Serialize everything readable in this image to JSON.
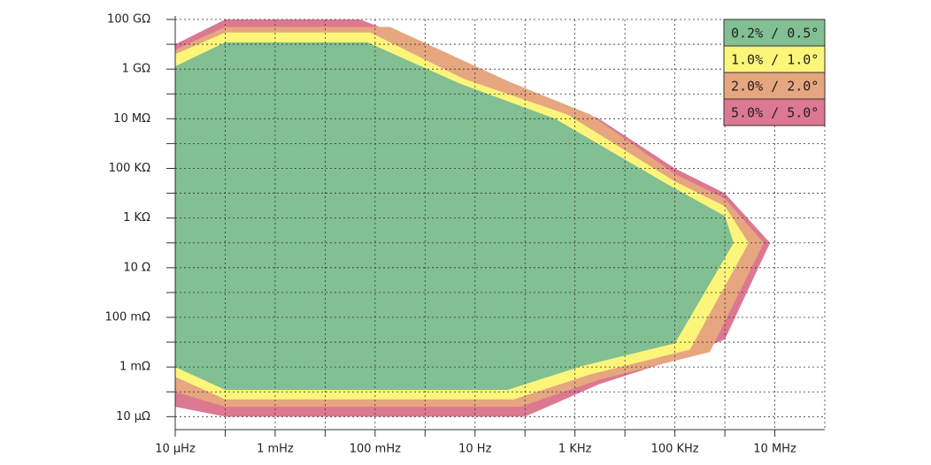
{
  "chart_data": {
    "type": "area",
    "log_x": true,
    "log_y": true,
    "grid": true,
    "legend": "top-right",
    "xlim": [
      1e-05,
      100000000.0
    ],
    "ylim": [
      3e-06,
      100000000000.0
    ],
    "xticks": [
      {
        "value": 1e-05,
        "label": "10 µHz"
      },
      {
        "value": 0.001,
        "label": "1 mHz"
      },
      {
        "value": 0.1,
        "label": "100 mHz"
      },
      {
        "value": 10,
        "label": "10 Hz"
      },
      {
        "value": 1000,
        "label": "1 KHz"
      },
      {
        "value": 100000.0,
        "label": "100 KHz"
      },
      {
        "value": 10000000.0,
        "label": "10 MHz"
      }
    ],
    "yticks": [
      {
        "value": 100000000000.0,
        "label": "100 GΩ"
      },
      {
        "value": 1000000000.0,
        "label": "1 GΩ"
      },
      {
        "value": 10000000.0,
        "label": "10 MΩ"
      },
      {
        "value": 100000.0,
        "label": "100 KΩ"
      },
      {
        "value": 1000,
        "label": "1 KΩ"
      },
      {
        "value": 10,
        "label": "10 Ω"
      },
      {
        "value": 0.1,
        "label": "100 mΩ"
      },
      {
        "value": 0.001,
        "label": "1 mΩ"
      },
      {
        "value": 1e-05,
        "label": "10 µΩ"
      }
    ],
    "series": [
      {
        "name": "0.2% / 0.5°",
        "color": "#82bf92",
        "x": [
          1e-05,
          0.0001,
          0.07,
          5,
          400,
          80000.0,
          1000000.0,
          1500000.0,
          100000.0,
          1400,
          45,
          0.0001,
          1e-05
        ],
        "y": [
          1300000000.0,
          12000000000.0,
          12000000000.0,
          260000000.0,
          10000000.0,
          20000.0,
          1200,
          100,
          0.009,
          0.0011,
          0.00012,
          0.00012,
          0.001
        ]
      },
      {
        "name": "1.0% / 1.0°",
        "color": "#fdf57a",
        "x": [
          1e-05,
          0.0001,
          0.08,
          6,
          700,
          100000.0,
          1000000.0,
          3000000.0,
          200000.0,
          2000,
          60,
          0.0001,
          1e-05
        ],
        "y": [
          4000000000.0,
          30000000000.0,
          30000000000.0,
          400000000.0,
          15000000.0,
          30000.0,
          3000,
          100,
          0.005,
          0.0005,
          5e-05,
          5e-05,
          0.0004
        ]
      },
      {
        "name": "2.0% / 2.0°",
        "color": "#e6a67f",
        "x": [
          1e-05,
          0.0001,
          0.2,
          50,
          2000,
          100000.0,
          1000000.0,
          6000000.0,
          500000.0,
          3000,
          80,
          0.0001,
          1e-05
        ],
        "y": [
          6000000000.0,
          50000000000.0,
          50000000000.0,
          300000000.0,
          15000000.0,
          60000.0,
          6000,
          100,
          0.004,
          0.0003,
          2.5e-05,
          2.5e-05,
          0.0001
        ]
      },
      {
        "name": "5.0% / 5.0°",
        "color": "#dd7891",
        "x": [
          1e-05,
          0.0001,
          0.05,
          0.4,
          80,
          3000,
          100000.0,
          1000000.0,
          8000000.0,
          1000000.0,
          100000.0,
          3000,
          100,
          0.0001,
          1e-05
        ],
        "y": [
          10000000000.0,
          100000000000.0,
          100000000000.0,
          20000000000.0,
          200000000.0,
          10000000.0,
          100000.0,
          10000.0,
          100,
          0.013,
          0.002,
          0.0002,
          1e-05,
          1e-05,
          2.5e-05
        ]
      }
    ]
  }
}
